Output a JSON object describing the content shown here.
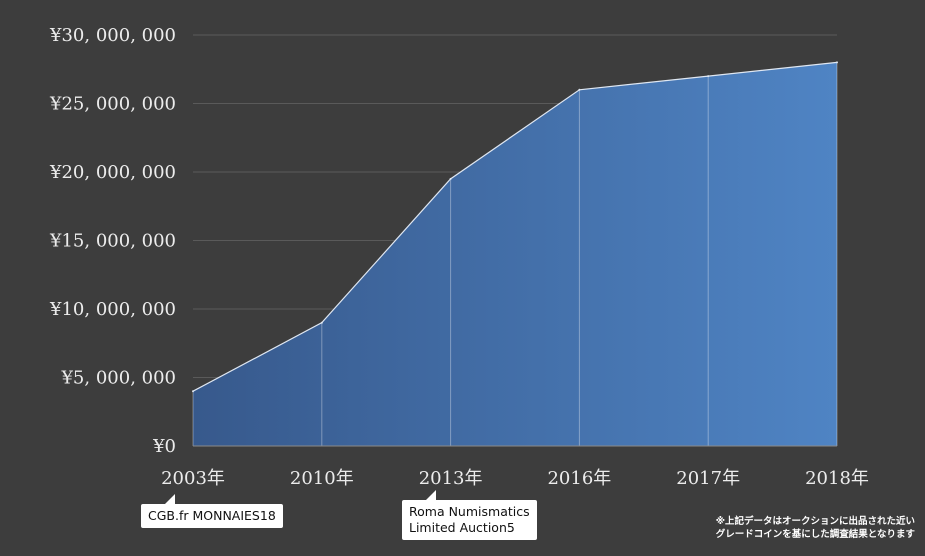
{
  "chart_data": {
    "type": "area",
    "x": [
      "2003年",
      "2010年",
      "2013年",
      "2016年",
      "2017年",
      "2018年"
    ],
    "values": [
      4000000,
      9000000,
      19500000,
      26000000,
      27000000,
      28000000
    ],
    "ylim": [
      0,
      30000000
    ],
    "yticks": [
      "¥0",
      "¥5, 000, 000",
      "¥10, 000, 000",
      "¥15, 000, 000",
      "¥20, 000, 000",
      "¥25, 000, 000",
      "¥30, 000, 000"
    ],
    "grid": true,
    "colors": {
      "background": "#3d3d3d",
      "fill_start": "#37598c",
      "fill_end": "#4f84c4",
      "line": "#dfe7f2",
      "text": "#ececec"
    },
    "annotations": [
      {
        "label": "CGB.fr MONNAIES18",
        "x": "2003年"
      },
      {
        "label": "Roma Numismatics\nLimited Auction5",
        "x": "2013年"
      }
    ]
  },
  "footnote": {
    "line1": "※上記データはオークションに出品された近い",
    "line2": "グレードコインを基にした調査結果となります"
  }
}
